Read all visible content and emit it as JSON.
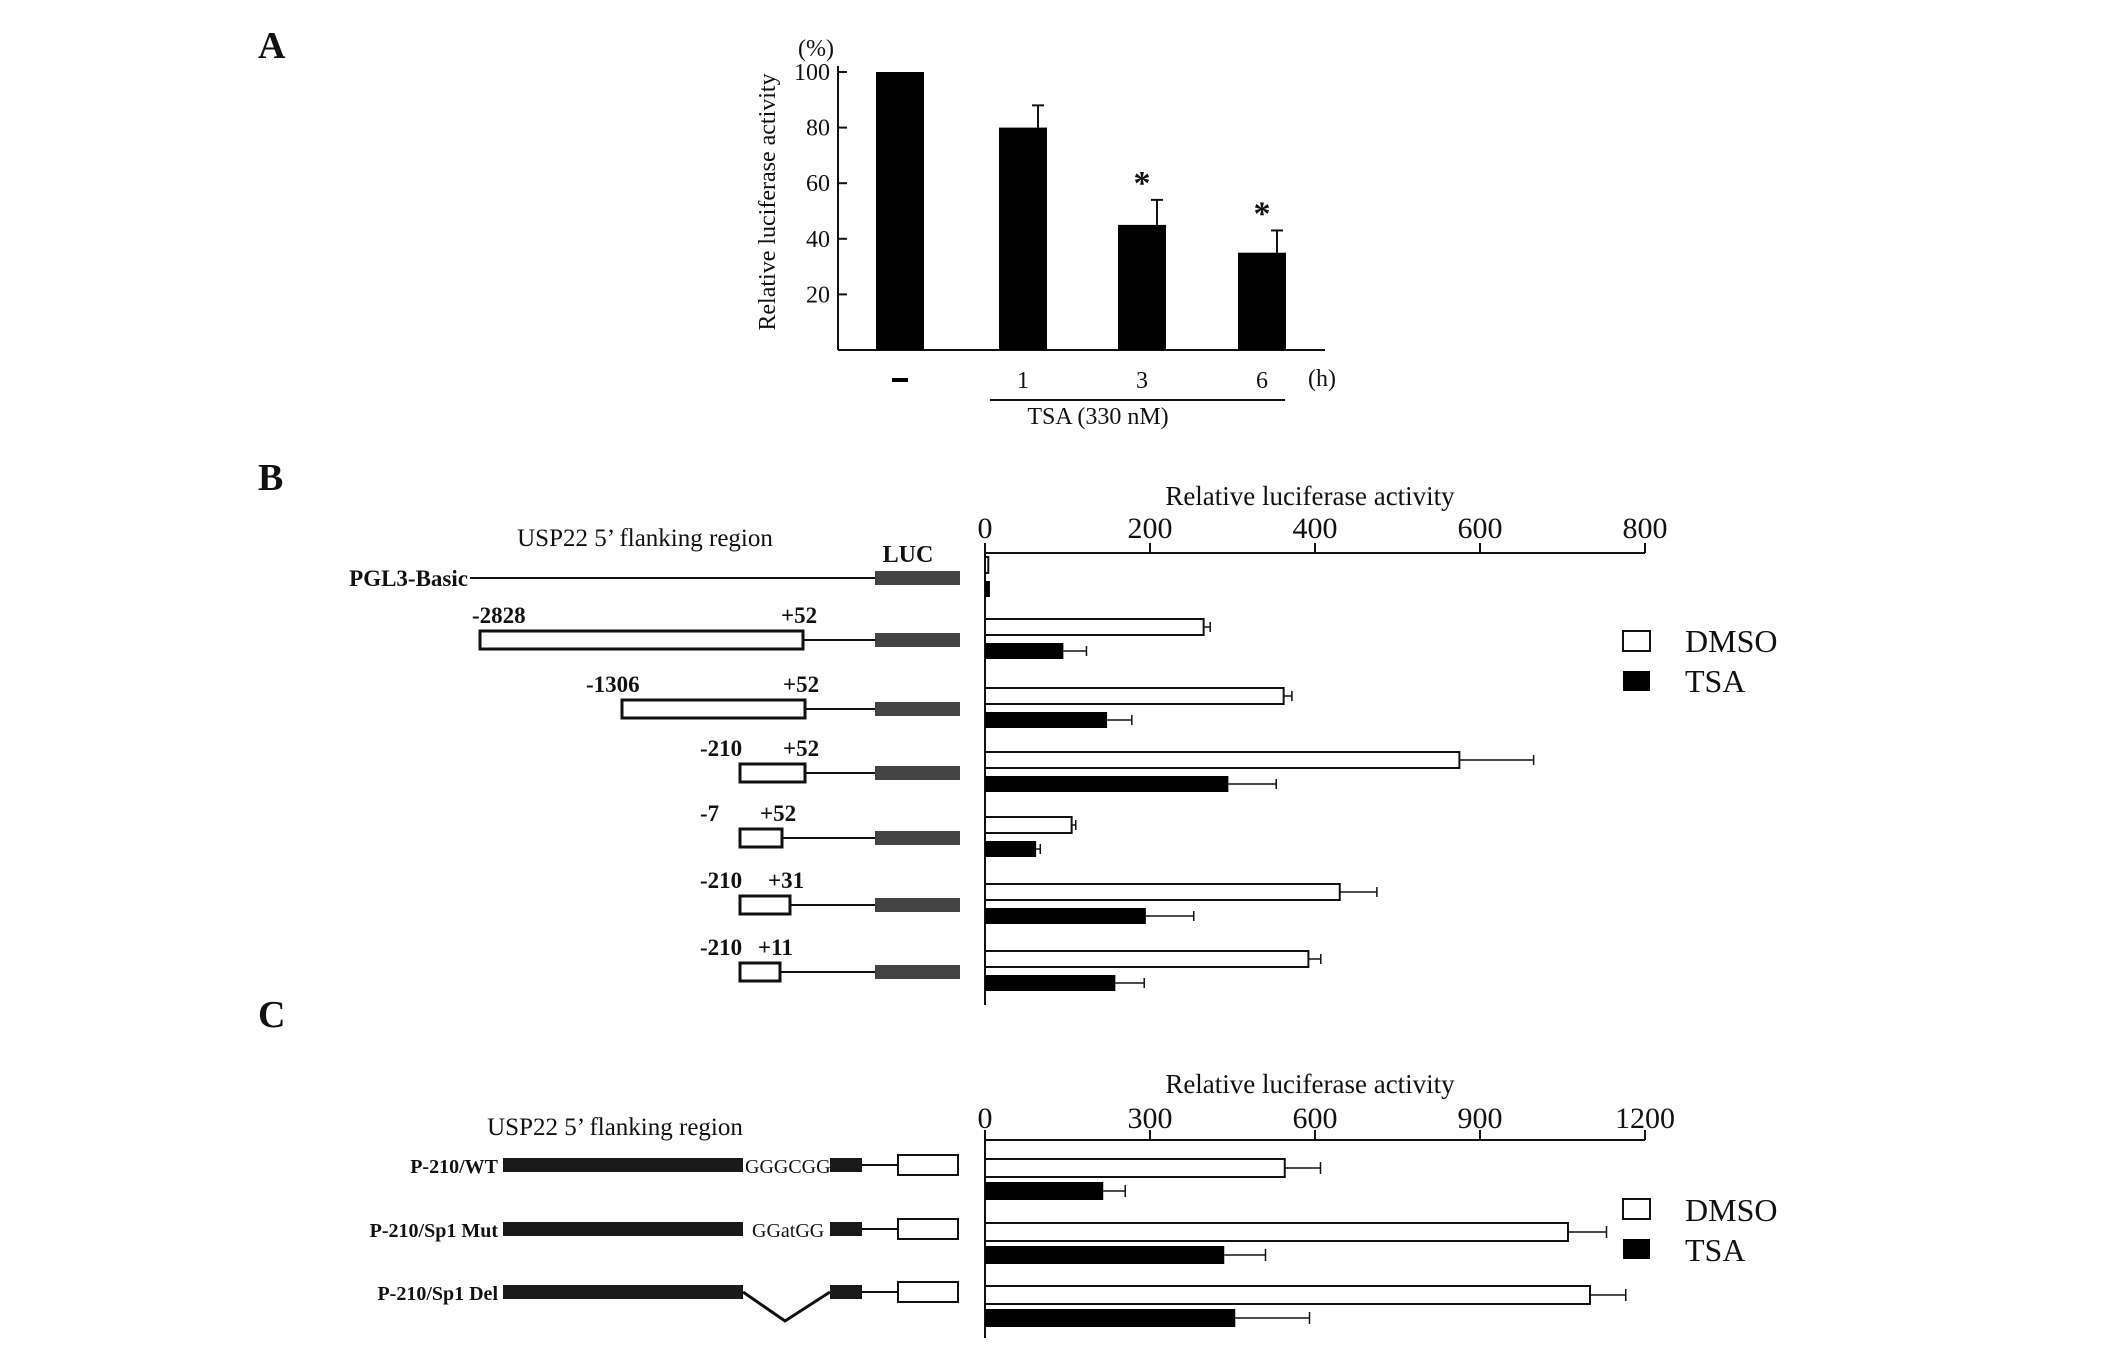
{
  "panels": {
    "A": "A",
    "B": "B",
    "C": "C"
  },
  "chart_data": [
    {
      "id": "A",
      "type": "bar",
      "ylabel": "Relative luciferase activity",
      "yunit": "(%)",
      "categories": [
        "-",
        "1",
        "3",
        "6"
      ],
      "x_unit": "(h)",
      "group_label": "TSA (330 nM)",
      "values": [
        100,
        80,
        45,
        35
      ],
      "errors": [
        0,
        8,
        9,
        8
      ],
      "significance": [
        "",
        "",
        "*",
        "*"
      ],
      "yticks": [
        20,
        40,
        60,
        80,
        100
      ],
      "ylim": [
        0,
        100
      ]
    },
    {
      "id": "B",
      "type": "bar",
      "orientation": "horizontal",
      "title": "Relative luciferase activity",
      "diagram_title": "USP22 5’ flanking region",
      "luc_label": "LUC",
      "xticks": [
        0,
        200,
        400,
        600,
        800
      ],
      "xlim": [
        0,
        800
      ],
      "legend": [
        "DMSO",
        "TSA"
      ],
      "constructs": [
        {
          "name": "PGL3-Basic",
          "start": "",
          "end": "",
          "DMSO": 4,
          "TSA": 6,
          "DMSO_err": 0,
          "TSA_err": 0
        },
        {
          "name": "",
          "start": "-2828",
          "end": "+52",
          "DMSO": 265,
          "TSA": 95,
          "DMSO_err": 8,
          "TSA_err": 28
        },
        {
          "name": "",
          "start": "-1306",
          "end": "+52",
          "DMSO": 362,
          "TSA": 148,
          "DMSO_err": 10,
          "TSA_err": 30
        },
        {
          "name": "",
          "start": "-210",
          "end": "+52",
          "DMSO": 575,
          "TSA": 295,
          "DMSO_err": 90,
          "TSA_err": 58
        },
        {
          "name": "",
          "start": "-7",
          "end": "+52",
          "DMSO": 105,
          "TSA": 62,
          "DMSO_err": 5,
          "TSA_err": 5
        },
        {
          "name": "",
          "start": "-210",
          "end": "+31",
          "DMSO": 430,
          "TSA": 195,
          "DMSO_err": 45,
          "TSA_err": 58
        },
        {
          "name": "",
          "start": "-210",
          "end": "+11",
          "DMSO": 392,
          "TSA": 158,
          "DMSO_err": 15,
          "TSA_err": 35
        }
      ]
    },
    {
      "id": "C",
      "type": "bar",
      "orientation": "horizontal",
      "title": "Relative luciferase activity",
      "diagram_title": "USP22 5’ flanking region",
      "xticks": [
        0,
        300,
        600,
        900,
        1200
      ],
      "xlim": [
        0,
        1200
      ],
      "legend": [
        "DMSO",
        "TSA"
      ],
      "constructs": [
        {
          "name": "P-210/WT",
          "site": "GGGCGG",
          "DMSO": 545,
          "TSA": 215,
          "DMSO_err": 65,
          "TSA_err": 40
        },
        {
          "name": "P-210/Sp1 Mut",
          "site": "GGatGG",
          "DMSO": 1060,
          "TSA": 435,
          "DMSO_err": 70,
          "TSA_err": 75
        },
        {
          "name": "P-210/Sp1 Del",
          "site": "",
          "DMSO": 1100,
          "TSA": 455,
          "DMSO_err": 65,
          "TSA_err": 135
        }
      ]
    }
  ]
}
